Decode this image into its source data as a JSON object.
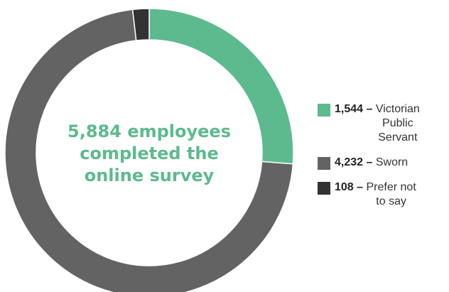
{
  "center_text": {
    "line1": "5,884 employees",
    "line2": "completed the",
    "line3": "online survey"
  },
  "colors": {
    "victorian_public_servant": "#5dba8e",
    "sworn": "#636363",
    "prefer_not_to_say": "#333333",
    "center_text": "#5dba8e"
  },
  "chart_data": {
    "type": "pie",
    "title": "5,884 employees completed the online survey",
    "total": 5884,
    "start_angle_deg": 0,
    "direction": "clockwise",
    "categories": [
      "Victorian Public Servant",
      "Sworn",
      "Prefer not to say"
    ],
    "values": [
      1544,
      4232,
      108
    ],
    "colors": [
      "#5dba8e",
      "#636363",
      "#333333"
    ],
    "legend_position": "right"
  },
  "legend": [
    {
      "count": "1,544 –",
      "label_lines": [
        "Victorian",
        "Public",
        "Servant"
      ]
    },
    {
      "count": "4,232 –",
      "label_lines": [
        "Sworn"
      ]
    },
    {
      "count": "108 –",
      "label_lines": [
        "Prefer not",
        "to say"
      ]
    }
  ]
}
